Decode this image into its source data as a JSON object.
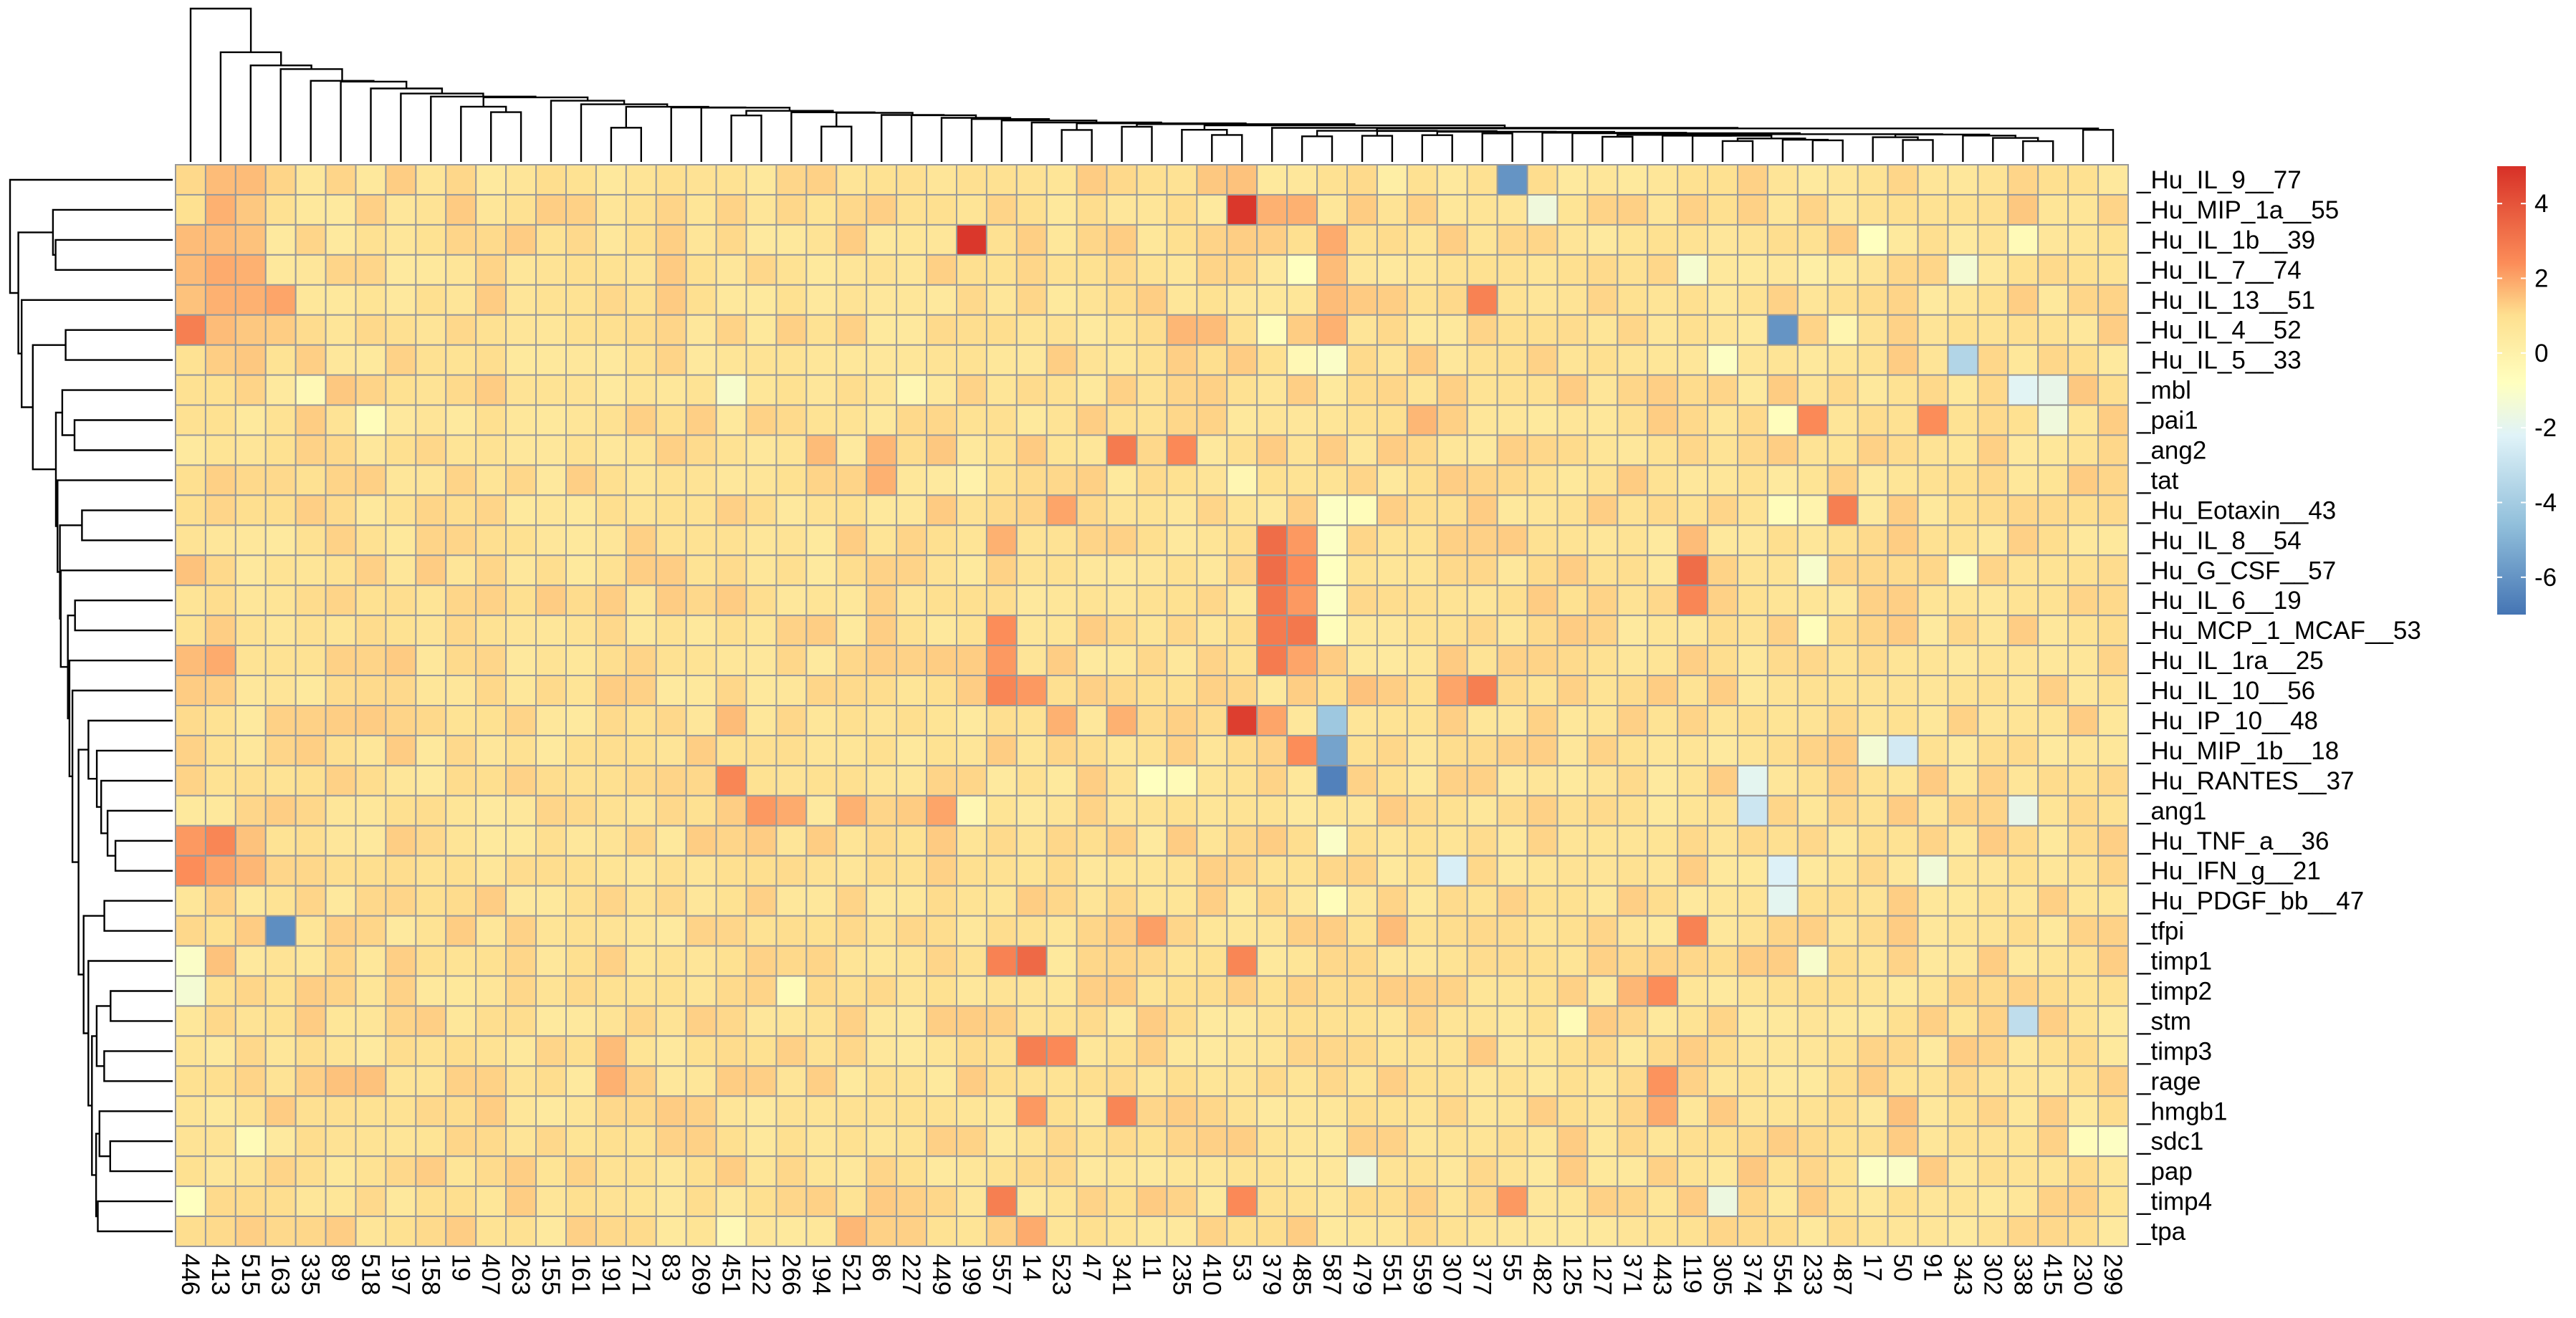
{
  "chart_data": {
    "type": "heatmap",
    "title": "",
    "xlabel": "",
    "ylabel": "",
    "columns": [
      "446",
      "413",
      "515",
      "163",
      "335",
      "89",
      "518",
      "197",
      "158",
      "19",
      "407",
      "263",
      "155",
      "161",
      "191",
      "271",
      "83",
      "269",
      "451",
      "122",
      "266",
      "194",
      "521",
      "86",
      "227",
      "449",
      "199",
      "557",
      "14",
      "523",
      "47",
      "341",
      "11",
      "235",
      "410",
      "53",
      "379",
      "485",
      "587",
      "479",
      "551",
      "559",
      "307",
      "377",
      "55",
      "482",
      "125",
      "127",
      "371",
      "443",
      "119",
      "305",
      "374",
      "554",
      "233",
      "487",
      "17",
      "50",
      "91",
      "343",
      "302",
      "338",
      "415",
      "230",
      "299"
    ],
    "rows": [
      "_Hu_IL_9__77",
      "_Hu_MIP_1a__55",
      "_Hu_IL_1b__39",
      "_Hu_IL_7__74",
      "_Hu_IL_13__51",
      "_Hu_IL_4__52",
      "_Hu_IL_5__33",
      "_mbl",
      "_pai1",
      "_ang2",
      "_tat",
      "_Hu_Eotaxin__43",
      "_Hu_IL_8__54",
      "_Hu_G_CSF__57",
      "_Hu_IL_6__19",
      "_Hu_MCP_1_MCAF__53",
      "_Hu_IL_1ra__25",
      "_Hu_IL_10__56",
      "_Hu_IP_10__48",
      "_Hu_MIP_1b__18",
      "_Hu_RANTES__37",
      "_ang1",
      "_Hu_TNF_a__36",
      "_Hu_IFN_g__21",
      "_Hu_PDGF_bb__47",
      "_tfpi",
      "_timp1",
      "_timp2",
      "_stm",
      "_timp3",
      "_rage",
      "_hmgb1",
      "_sdc1",
      "_pap",
      "_timp4",
      "_tpa"
    ],
    "color_scale": {
      "min": -7,
      "max": 5,
      "ticks": [
        4,
        2,
        0,
        -2,
        -4,
        -6
      ],
      "stops": [
        {
          "value": -7,
          "color": "#4575b4"
        },
        {
          "value": -4.6,
          "color": "#91bfdb"
        },
        {
          "value": -2.2,
          "color": "#e0f3f8"
        },
        {
          "value": -0.8,
          "color": "#ffffbf"
        },
        {
          "value": 1.0,
          "color": "#fee090"
        },
        {
          "value": 2.4,
          "color": "#fc8d59"
        },
        {
          "value": 5,
          "color": "#d73027"
        }
      ]
    },
    "grid_color": "#999999",
    "base_value": 0.9,
    "cells": [
      [
        0,
        1,
        1.6
      ],
      [
        0,
        2,
        1.6
      ],
      [
        0,
        34,
        1.4
      ],
      [
        0,
        44,
        -6
      ],
      [
        0,
        35,
        1.5
      ],
      [
        0,
        40,
        0.2
      ],
      [
        1,
        1,
        1.8
      ],
      [
        1,
        2,
        1.4
      ],
      [
        1,
        35,
        4.8
      ],
      [
        1,
        36,
        1.8
      ],
      [
        1,
        37,
        1.8
      ],
      [
        1,
        45,
        -1.5
      ],
      [
        1,
        61,
        1.4
      ],
      [
        2,
        0,
        1.6
      ],
      [
        2,
        1,
        1.6
      ],
      [
        2,
        2,
        1.5
      ],
      [
        2,
        26,
        4.8
      ],
      [
        2,
        38,
        1.9
      ],
      [
        2,
        56,
        -0.8
      ],
      [
        2,
        61,
        -0.5
      ],
      [
        3,
        0,
        1.6
      ],
      [
        3,
        1,
        1.9
      ],
      [
        3,
        2,
        1.8
      ],
      [
        3,
        37,
        -0.8
      ],
      [
        3,
        38,
        1.6
      ],
      [
        3,
        50,
        -1.2
      ],
      [
        3,
        59,
        -1.3
      ],
      [
        3,
        54,
        0.2
      ],
      [
        4,
        0,
        1.5
      ],
      [
        4,
        1,
        1.8
      ],
      [
        4,
        2,
        1.8
      ],
      [
        4,
        3,
        2.0
      ],
      [
        4,
        43,
        2.7
      ],
      [
        4,
        38,
        1.6
      ],
      [
        5,
        0,
        2.8
      ],
      [
        5,
        1,
        1.6
      ],
      [
        5,
        2,
        1.4
      ],
      [
        5,
        33,
        1.7
      ],
      [
        5,
        34,
        1.6
      ],
      [
        5,
        36,
        -0.6
      ],
      [
        5,
        38,
        1.8
      ],
      [
        5,
        53,
        -6
      ],
      [
        5,
        55,
        -0.2
      ],
      [
        6,
        1,
        1.3
      ],
      [
        6,
        2,
        1.4
      ],
      [
        6,
        37,
        -0.4
      ],
      [
        6,
        38,
        -1.0
      ],
      [
        6,
        59,
        -3.6
      ],
      [
        6,
        51,
        -0.9
      ],
      [
        7,
        4,
        -0.4
      ],
      [
        7,
        5,
        1.4
      ],
      [
        7,
        18,
        -1.1
      ],
      [
        7,
        24,
        -0.3
      ],
      [
        7,
        61,
        -2.1
      ],
      [
        7,
        62,
        -1.8
      ],
      [
        7,
        63,
        1.4
      ],
      [
        8,
        6,
        -0.6
      ],
      [
        8,
        41,
        1.7
      ],
      [
        8,
        54,
        2.5
      ],
      [
        8,
        58,
        2.4
      ],
      [
        8,
        62,
        -1.5
      ],
      [
        8,
        53,
        -0.7
      ],
      [
        9,
        31,
        2.9
      ],
      [
        9,
        33,
        2.5
      ],
      [
        9,
        23,
        1.7
      ],
      [
        9,
        25,
        1.4
      ],
      [
        9,
        21,
        1.6
      ],
      [
        10,
        23,
        1.8
      ],
      [
        10,
        26,
        0.0
      ],
      [
        10,
        35,
        -0.3
      ],
      [
        11,
        29,
        2.0
      ],
      [
        11,
        38,
        -0.9
      ],
      [
        11,
        39,
        -0.6
      ],
      [
        11,
        55,
        2.8
      ],
      [
        11,
        53,
        -0.6
      ],
      [
        11,
        54,
        -0.1
      ],
      [
        12,
        27,
        1.8
      ],
      [
        12,
        36,
        3.3
      ],
      [
        12,
        37,
        2.2
      ],
      [
        12,
        38,
        -0.9
      ],
      [
        12,
        50,
        1.6
      ],
      [
        13,
        0,
        1.5
      ],
      [
        13,
        36,
        3.3
      ],
      [
        13,
        37,
        2.4
      ],
      [
        13,
        38,
        -0.8
      ],
      [
        13,
        50,
        3.3
      ],
      [
        13,
        54,
        -1.1
      ],
      [
        13,
        59,
        -0.9
      ],
      [
        14,
        36,
        3.0
      ],
      [
        14,
        37,
        2.2
      ],
      [
        14,
        38,
        -0.9
      ],
      [
        14,
        50,
        2.6
      ],
      [
        15,
        27,
        2.4
      ],
      [
        15,
        36,
        2.9
      ],
      [
        15,
        37,
        3.0
      ],
      [
        15,
        38,
        -0.6
      ],
      [
        15,
        54,
        -0.6
      ],
      [
        16,
        0,
        1.6
      ],
      [
        16,
        1,
        1.9
      ],
      [
        16,
        27,
        2.2
      ],
      [
        16,
        36,
        2.9
      ],
      [
        16,
        37,
        2.0
      ],
      [
        17,
        27,
        2.6
      ],
      [
        17,
        28,
        2.2
      ],
      [
        17,
        42,
        2.0
      ],
      [
        17,
        43,
        2.8
      ],
      [
        17,
        39,
        1.5
      ],
      [
        18,
        35,
        4.6
      ],
      [
        18,
        36,
        2.0
      ],
      [
        18,
        38,
        -4.2
      ],
      [
        18,
        31,
        1.8
      ],
      [
        18,
        29,
        1.8
      ],
      [
        18,
        18,
        1.6
      ],
      [
        19,
        37,
        2.4
      ],
      [
        19,
        38,
        -5.5
      ],
      [
        19,
        57,
        -2.6
      ],
      [
        19,
        56,
        -1.3
      ],
      [
        20,
        18,
        2.6
      ],
      [
        20,
        32,
        -0.8
      ],
      [
        20,
        38,
        -6.6
      ],
      [
        20,
        52,
        -2.0
      ],
      [
        20,
        33,
        -0.5
      ],
      [
        21,
        19,
        2.2
      ],
      [
        21,
        20,
        1.9
      ],
      [
        21,
        22,
        1.8
      ],
      [
        21,
        25,
        2.0
      ],
      [
        21,
        26,
        -0.3
      ],
      [
        21,
        52,
        -2.8
      ],
      [
        21,
        61,
        -1.8
      ],
      [
        22,
        0,
        2.2
      ],
      [
        22,
        1,
        2.6
      ],
      [
        22,
        2,
        1.5
      ],
      [
        22,
        38,
        -1.0
      ],
      [
        23,
        0,
        2.4
      ],
      [
        23,
        1,
        2.0
      ],
      [
        23,
        2,
        1.7
      ],
      [
        23,
        42,
        -2.4
      ],
      [
        23,
        53,
        -2.3
      ],
      [
        23,
        58,
        -1.4
      ],
      [
        24,
        53,
        -2.0
      ],
      [
        24,
        38,
        -0.6
      ],
      [
        25,
        3,
        -6.2
      ],
      [
        25,
        32,
        2.1
      ],
      [
        25,
        50,
        2.7
      ],
      [
        25,
        40,
        1.6
      ],
      [
        26,
        0,
        -1.0
      ],
      [
        26,
        1,
        1.5
      ],
      [
        26,
        27,
        2.7
      ],
      [
        26,
        28,
        3.4
      ],
      [
        26,
        35,
        2.6
      ],
      [
        26,
        54,
        -1.1
      ],
      [
        27,
        0,
        -1.3
      ],
      [
        27,
        49,
        2.4
      ],
      [
        27,
        48,
        1.7
      ],
      [
        27,
        20,
        -0.5
      ],
      [
        28,
        61,
        -3.2
      ],
      [
        28,
        46,
        -0.5
      ],
      [
        29,
        28,
        2.8
      ],
      [
        29,
        29,
        2.5
      ],
      [
        29,
        14,
        1.6
      ],
      [
        30,
        14,
        1.8
      ],
      [
        30,
        49,
        2.3
      ],
      [
        30,
        5,
        1.5
      ],
      [
        30,
        6,
        1.5
      ],
      [
        31,
        28,
        2.2
      ],
      [
        31,
        31,
        2.6
      ],
      [
        31,
        49,
        1.9
      ],
      [
        31,
        57,
        1.5
      ],
      [
        32,
        2,
        -0.5
      ],
      [
        32,
        63,
        -0.6
      ],
      [
        32,
        64,
        -0.9
      ],
      [
        33,
        39,
        -1.6
      ],
      [
        33,
        56,
        -0.9
      ],
      [
        33,
        57,
        -1.0
      ],
      [
        33,
        52,
        1.4
      ],
      [
        34,
        0,
        -0.8
      ],
      [
        34,
        27,
        2.8
      ],
      [
        34,
        35,
        2.5
      ],
      [
        34,
        44,
        2.2
      ],
      [
        34,
        51,
        -1.6
      ],
      [
        35,
        28,
        1.9
      ],
      [
        35,
        22,
        1.7
      ],
      [
        35,
        18,
        -0.4
      ]
    ]
  }
}
